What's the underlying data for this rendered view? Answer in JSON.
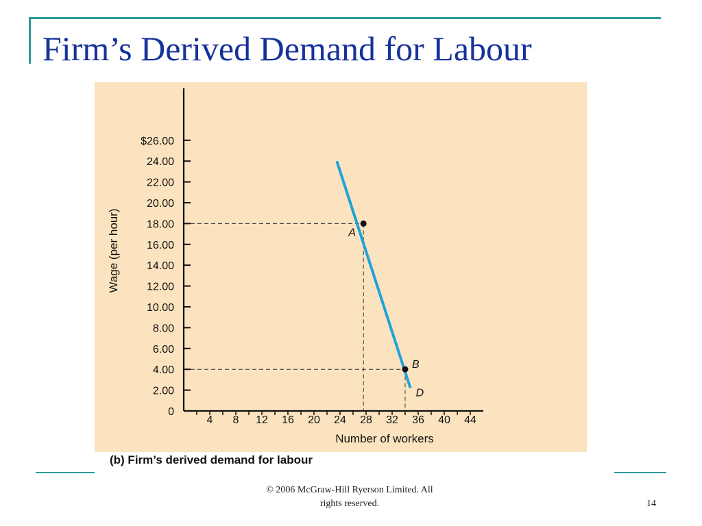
{
  "slide": {
    "title": "Firm’s Derived Demand for Labour",
    "caption": "(b) Firm’s derived demand for labour",
    "copyright_line1": "© 2006 McGraw-Hill Ryerson Limited.  All",
    "copyright_line2": "rights reserved.",
    "page_number": "14"
  },
  "colors": {
    "plot_background": "#fbe3bf",
    "curve": "#1fa3d9",
    "accent_rule": "#2a9a9a",
    "title": "#17319a"
  },
  "chart_data": {
    "type": "line",
    "title": "",
    "xlabel": "Number of workers",
    "ylabel": "Wage (per hour)",
    "xlim": [
      0,
      46
    ],
    "ylim": [
      0,
      31
    ],
    "x_ticks": [
      4,
      8,
      12,
      16,
      20,
      24,
      28,
      32,
      36,
      40,
      44
    ],
    "x_tick_labels": [
      "4",
      "8",
      "12",
      "16",
      "20",
      "24",
      "28",
      "32",
      "36",
      "40",
      "44"
    ],
    "y_ticks": [
      0,
      2,
      4,
      6,
      8,
      10,
      12,
      14,
      16,
      18,
      20,
      22,
      24,
      26
    ],
    "y_tick_labels": [
      "0",
      "2.00",
      "4.00",
      "6.00",
      "8.00",
      "10.00",
      "12.00",
      "14.00",
      "16.00",
      "18.00",
      "20.00",
      "22.00",
      "24.00",
      "$26.00"
    ],
    "grid": false,
    "series": [
      {
        "name": "D",
        "x": [
          23.5,
          34.8
        ],
        "y": [
          24,
          2.2
        ]
      }
    ],
    "points": [
      {
        "label": "A",
        "x": 27.6,
        "y": 18
      },
      {
        "label": "B",
        "x": 34.0,
        "y": 4
      }
    ],
    "curve_label": "D",
    "guides": [
      {
        "from_point": "A"
      },
      {
        "from_point": "B"
      }
    ]
  }
}
